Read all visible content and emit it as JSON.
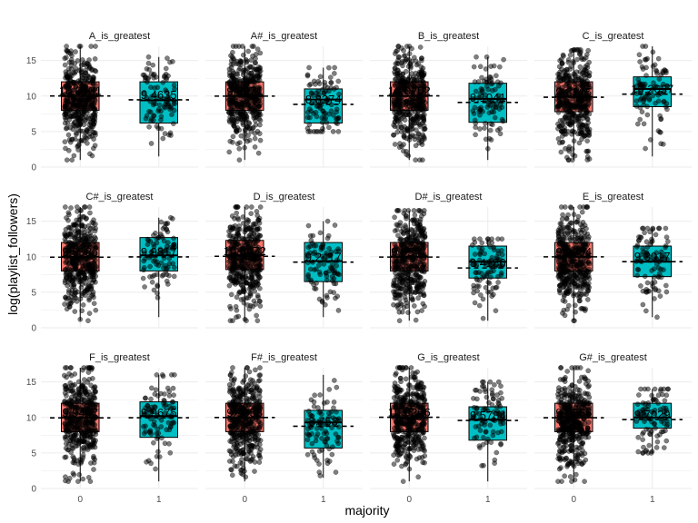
{
  "chart_data": {
    "type": "boxplot",
    "xlabel": "majority",
    "ylabel": "log(playlist_followers)",
    "ylim": [
      0,
      17
    ],
    "yticks": [
      0,
      5,
      10,
      15
    ],
    "categories": [
      "0",
      "1"
    ],
    "grid": true,
    "legend": "none",
    "colors": {
      "group0": "#F8766D",
      "group1": "#00BFC4",
      "points": "#000000",
      "background": "#FFFFFF",
      "grid": "#EBEBEB"
    },
    "panels": [
      {
        "title": "A_is_greatest",
        "boxes": [
          {
            "q1": 8.0,
            "median": 10.0,
            "q3": 12.0,
            "whisker_low": 1.0,
            "whisker_high": 17.0,
            "mean": 10.0131,
            "mean_label": "10.0131"
          },
          {
            "q1": 6.2,
            "median": 9.4,
            "q3": 12.0,
            "whisker_low": 1.5,
            "whisker_high": 15.5,
            "mean": 9.4635,
            "mean_label": "9.4635"
          }
        ]
      },
      {
        "title": "A#_is_greatest",
        "boxes": [
          {
            "q1": 8.0,
            "median": 10.0,
            "q3": 12.0,
            "whisker_low": 1.0,
            "whisker_high": 17.0,
            "mean": 9.9871,
            "mean_label": "9.9871"
          },
          {
            "q1": 6.2,
            "median": 9.5,
            "q3": 11.0,
            "whisker_low": 5.0,
            "whisker_high": 14.0,
            "mean": 8.8274,
            "mean_label": "8.8274"
          }
        ]
      },
      {
        "title": "B_is_greatest",
        "boxes": [
          {
            "q1": 8.0,
            "median": 10.0,
            "q3": 12.0,
            "whisker_low": 1.0,
            "whisker_high": 17.0,
            "mean": 10.0202,
            "mean_label": "10.0202"
          },
          {
            "q1": 6.3,
            "median": 9.6,
            "q3": 11.8,
            "whisker_low": 1.0,
            "whisker_high": 15.5,
            "mean": 9.1041,
            "mean_label": "9.1041"
          }
        ]
      },
      {
        "title": "C_is_greatest",
        "boxes": [
          {
            "q1": 7.8,
            "median": 9.9,
            "q3": 12.0,
            "whisker_low": 1.0,
            "whisker_high": 16.5,
            "mean": 9.8315,
            "mean_label": "9.8315"
          },
          {
            "q1": 8.5,
            "median": 11.0,
            "q3": 12.7,
            "whisker_low": 1.5,
            "whisker_high": 17.0,
            "mean": 10.2637,
            "mean_label": "10.2637"
          }
        ]
      },
      {
        "title": "C#_is_greatest",
        "boxes": [
          {
            "q1": 8.0,
            "median": 10.0,
            "q3": 12.0,
            "whisker_low": 1.0,
            "whisker_high": 17.0,
            "mean": 9.9386,
            "mean_label": "9.9386"
          },
          {
            "q1": 8.0,
            "median": 10.2,
            "q3": 12.7,
            "whisker_low": 1.5,
            "whisker_high": 15.5,
            "mean": 9.9817,
            "mean_label": "9.9817"
          }
        ]
      },
      {
        "title": "D_is_greatest",
        "boxes": [
          {
            "q1": 8.2,
            "median": 10.2,
            "q3": 12.3,
            "whisker_low": 1.0,
            "whisker_high": 17.0,
            "mean": 10.0672,
            "mean_label": "10.0672"
          },
          {
            "q1": 6.5,
            "median": 9.4,
            "q3": 12.0,
            "whisker_low": 1.5,
            "whisker_high": 15.0,
            "mean": 9.2417,
            "mean_label": "9.2417"
          }
        ]
      },
      {
        "title": "D#_is_greatest",
        "boxes": [
          {
            "q1": 8.0,
            "median": 10.0,
            "q3": 12.0,
            "whisker_low": 1.0,
            "whisker_high": 16.5,
            "mean": 9.9541,
            "mean_label": "9.9541"
          },
          {
            "q1": 7.0,
            "median": 9.3,
            "q3": 11.5,
            "whisker_low": 1.0,
            "whisker_high": 12.5,
            "mean": 8.4186,
            "mean_label": "8.4186"
          }
        ]
      },
      {
        "title": "E_is_greatest",
        "boxes": [
          {
            "q1": 8.0,
            "median": 10.0,
            "q3": 12.0,
            "whisker_low": 1.0,
            "whisker_high": 17.0,
            "mean": 9.9854,
            "mean_label": "9.9854"
          },
          {
            "q1": 7.2,
            "median": 9.3,
            "q3": 11.5,
            "whisker_low": 1.5,
            "whisker_high": 14.0,
            "mean": 9.3017,
            "mean_label": "9.3017"
          }
        ]
      },
      {
        "title": "F_is_greatest",
        "boxes": [
          {
            "q1": 8.0,
            "median": 10.0,
            "q3": 12.0,
            "whisker_low": 1.0,
            "whisker_high": 17.0,
            "mean": 9.9447,
            "mean_label": "9.9447"
          },
          {
            "q1": 7.2,
            "median": 10.2,
            "q3": 12.2,
            "whisker_low": 1.0,
            "whisker_high": 16.0,
            "mean": 9.9675,
            "mean_label": "9.9675"
          }
        ]
      },
      {
        "title": "F#_is_greatest",
        "boxes": [
          {
            "q1": 8.0,
            "median": 10.0,
            "q3": 12.0,
            "whisker_low": 1.0,
            "whisker_high": 17.0,
            "mean": 9.9958,
            "mean_label": "9.9958"
          },
          {
            "q1": 5.7,
            "median": 9.3,
            "q3": 11.0,
            "whisker_low": 1.5,
            "whisker_high": 16.0,
            "mean": 8.758,
            "mean_label": "8.758"
          }
        ]
      },
      {
        "title": "G_is_greatest",
        "boxes": [
          {
            "q1": 8.0,
            "median": 10.0,
            "q3": 12.0,
            "whisker_low": 1.0,
            "whisker_high": 17.0,
            "mean": 10.0266,
            "mean_label": "10.0266"
          },
          {
            "q1": 6.8,
            "median": 9.7,
            "q3": 11.5,
            "whisker_low": 1.0,
            "whisker_high": 15.0,
            "mean": 9.5784,
            "mean_label": "9.5784"
          }
        ]
      },
      {
        "title": "G#_is_greatest",
        "boxes": [
          {
            "q1": 8.0,
            "median": 10.0,
            "q3": 12.0,
            "whisker_low": 1.0,
            "whisker_high": 17.0,
            "mean": 9.9556,
            "mean_label": "9.9556"
          },
          {
            "q1": 8.5,
            "median": 10.0,
            "q3": 12.0,
            "whisker_low": 5.0,
            "whisker_high": 14.0,
            "mean": 9.7029,
            "mean_label": "9.7029"
          }
        ]
      }
    ]
  }
}
